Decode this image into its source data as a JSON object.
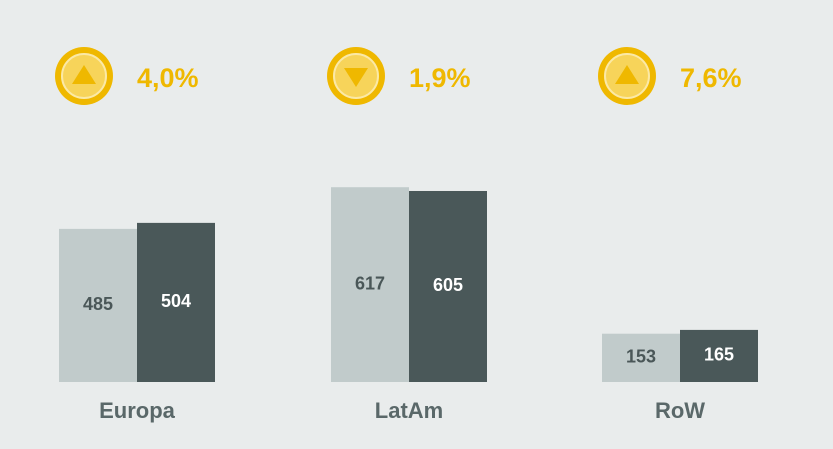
{
  "chart_data": {
    "type": "bar",
    "categories": [
      "Europa",
      "LatAm",
      "RoW"
    ],
    "series": [
      {
        "color": "#c1cbcb",
        "label_color": "#4a5758",
        "values": [
          485,
          617,
          153
        ]
      },
      {
        "color": "#4a5859",
        "label_color": "#ffffff",
        "values": [
          504,
          605,
          165
        ]
      }
    ],
    "ylim": [
      0,
      700
    ],
    "annotations": [
      "4,0%",
      "1,9%",
      "7,6%"
    ],
    "directions": [
      "up",
      "down",
      "up"
    ],
    "accent_color": "#efb800"
  }
}
